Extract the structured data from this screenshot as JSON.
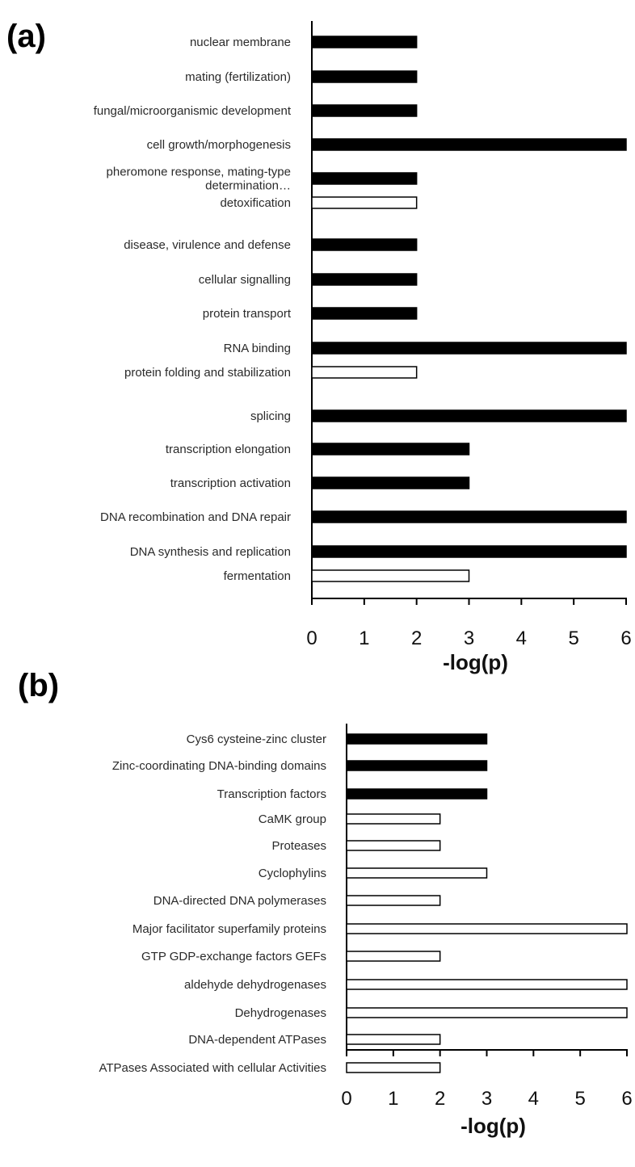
{
  "chart_data": [
    {
      "type": "bar",
      "orientation": "horizontal",
      "panel_label": "(a)",
      "xlabel": "-log(p)",
      "xlim": [
        0,
        6
      ],
      "xticks": [
        "0",
        "1",
        "2",
        "3",
        "4",
        "5",
        "6"
      ],
      "grid": false,
      "categories": [
        [
          "nuclear membrane"
        ],
        [
          "mating (fertilization)"
        ],
        [
          "fungal/microorganismic development"
        ],
        [
          "cell growth/morphogenesis"
        ],
        [
          "pheromone response, mating-type",
          "determination…"
        ],
        [
          "detoxification"
        ],
        [
          "disease, virulence and defense"
        ],
        [
          "cellular signalling"
        ],
        [
          "protein transport"
        ],
        [
          "RNA binding"
        ],
        [
          "protein folding and stabilization"
        ],
        [
          "splicing"
        ],
        [
          "transcription elongation"
        ],
        [
          "transcription activation"
        ],
        [
          "DNA recombination and DNA repair"
        ],
        [
          "DNA synthesis and replication"
        ],
        [
          "fermentation"
        ]
      ],
      "values": [
        2,
        2,
        2,
        6,
        2,
        2,
        2,
        2,
        2,
        6,
        2,
        6,
        3,
        3,
        6,
        6,
        3
      ],
      "fills": [
        "black",
        "black",
        "black",
        "black",
        "black",
        "white",
        "black",
        "black",
        "black",
        "black",
        "white",
        "black",
        "black",
        "black",
        "black",
        "black",
        "white"
      ]
    },
    {
      "type": "bar",
      "orientation": "horizontal",
      "panel_label": "(b)",
      "xlabel": "-log(p)",
      "xlim": [
        0,
        6
      ],
      "xticks": [
        "0",
        "1",
        "2",
        "3",
        "4",
        "5",
        "6"
      ],
      "grid": false,
      "categories": [
        [
          "Cys6 cysteine-zinc cluster"
        ],
        [
          "Zinc-coordinating DNA-binding domains"
        ],
        [
          "Transcription factors"
        ],
        [
          "CaMK group"
        ],
        [
          "Proteases"
        ],
        [
          "Cyclophylins"
        ],
        [
          "DNA-directed DNA polymerases"
        ],
        [
          "Major facilitator superfamily proteins"
        ],
        [
          "GTP GDP-exchange factors GEFs"
        ],
        [
          "aldehyde dehydrogenases"
        ],
        [
          "Dehydrogenases"
        ],
        [
          "DNA-dependent ATPases"
        ],
        [
          "ATPases Associated with cellular Activities"
        ]
      ],
      "values": [
        3,
        3,
        3,
        2,
        2,
        3,
        2,
        6,
        2,
        6,
        6,
        2,
        2
      ],
      "fills": [
        "black",
        "black",
        "black",
        "white",
        "white",
        "white",
        "white",
        "white",
        "white",
        "white",
        "white",
        "white",
        "white"
      ]
    }
  ]
}
